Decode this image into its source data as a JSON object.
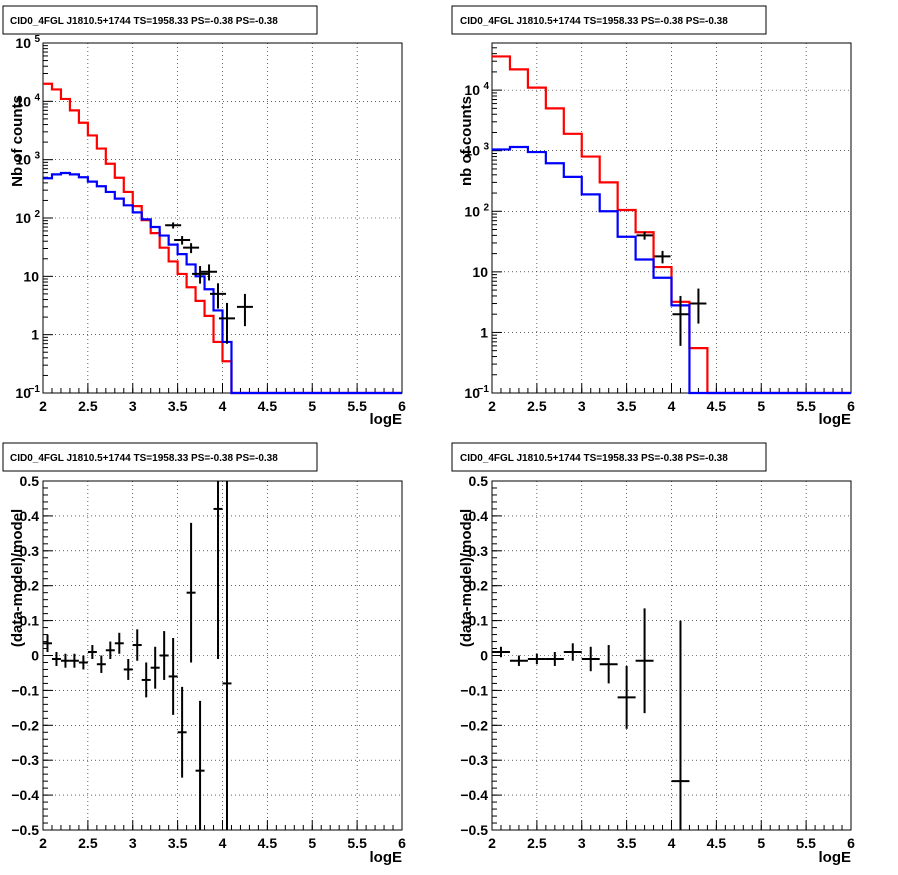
{
  "chart_data": [
    {
      "type": "line",
      "title": "CID0_4FGL J1810.5+1744 TS=1958.33 PS=-0.38 PS=-0.38",
      "xlabel": "logE",
      "ylabel": "Nb of counts",
      "xlim": [
        2,
        6
      ],
      "ylim": [
        0.1,
        100000
      ],
      "yscale": "log",
      "grid": true,
      "xticks": [
        "2",
        "2.5",
        "3",
        "3.5",
        "4",
        "4.5",
        "5",
        "5.5",
        "6"
      ],
      "yticks": [
        {
          "value": 0.1,
          "label": "10",
          "sup": "−1"
        },
        {
          "value": 1,
          "label": "1",
          "sup": ""
        },
        {
          "value": 10,
          "label": "10",
          "sup": ""
        },
        {
          "value": 100,
          "label": "10",
          "sup": "2"
        },
        {
          "value": 1000,
          "label": "10",
          "sup": "3"
        },
        {
          "value": 10000,
          "label": "10",
          "sup": "4"
        },
        {
          "value": 100000,
          "label": "10",
          "sup": "5"
        }
      ],
      "bin_edges": [
        2.0,
        2.1,
        2.2,
        2.3,
        2.4,
        2.5,
        2.6,
        2.7,
        2.8,
        2.9,
        3.0,
        3.1,
        3.2,
        3.3,
        3.4,
        3.5,
        3.6,
        3.7,
        3.8,
        3.9,
        4.0,
        4.1,
        4.2,
        4.3,
        4.4,
        4.5,
        4.6,
        4.7,
        4.8,
        4.9,
        5.0,
        5.1,
        5.2,
        5.3,
        5.4,
        5.5,
        5.6,
        5.7,
        5.8,
        5.9,
        6.0
      ],
      "series": [
        {
          "color": "#ff0000",
          "values": [
            20000,
            16000,
            11000,
            7000,
            4300,
            2600,
            1550,
            850,
            490,
            280,
            160,
            92,
            55,
            31,
            18,
            11,
            6.5,
            3.8,
            2.1,
            0.75,
            0.35,
            0.1,
            0.1,
            0.1,
            0.1,
            0.1,
            0.1,
            0.1,
            0.1,
            0.1,
            0.1,
            0.1,
            0.1,
            0.1,
            0.1,
            0.1,
            0.1,
            0.1,
            0.1,
            0.1
          ]
        },
        {
          "color": "#0000ff",
          "values": [
            480,
            560,
            590,
            560,
            500,
            420,
            350,
            280,
            215,
            165,
            125,
            95,
            70,
            50,
            35,
            24,
            16,
            10,
            6,
            2.6,
            0.75,
            0.1,
            0.1,
            0.1,
            0.1,
            0.1,
            0.1,
            0.1,
            0.1,
            0.1,
            0.1,
            0.1,
            0.1,
            0.1,
            0.1,
            0.1,
            0.1,
            0.1,
            0.1,
            0.1
          ]
        }
      ],
      "data_points": [
        {
          "x": 3.45,
          "y": 75,
          "yerr_lo": 9,
          "yerr_hi": 9
        },
        {
          "x": 3.55,
          "y": 42,
          "yerr_lo": 7,
          "yerr_hi": 7
        },
        {
          "x": 3.65,
          "y": 31,
          "yerr_lo": 6,
          "yerr_hi": 6
        },
        {
          "x": 3.75,
          "y": 11,
          "yerr_lo": 3.5,
          "yerr_hi": 4
        },
        {
          "x": 3.85,
          "y": 12,
          "yerr_lo": 3.5,
          "yerr_hi": 4
        },
        {
          "x": 3.95,
          "y": 5,
          "yerr_lo": 2.2,
          "yerr_hi": 2.6
        },
        {
          "x": 4.05,
          "y": 1.9,
          "yerr_lo": 1.2,
          "yerr_hi": 1.6
        },
        {
          "x": 4.25,
          "y": 3,
          "yerr_lo": 1.6,
          "yerr_hi": 2
        }
      ]
    },
    {
      "type": "line",
      "title": "CID0_4FGL J1810.5+1744 TS=1958.33 PS=-0.38 PS=-0.38",
      "xlabel": "logE",
      "ylabel": "nb of counts",
      "xlim": [
        2,
        6
      ],
      "ylim": [
        0.1,
        60000
      ],
      "yscale": "log",
      "grid": true,
      "xticks": [
        "2",
        "2.5",
        "3",
        "3.5",
        "4",
        "4.5",
        "5",
        "5.5",
        "6"
      ],
      "yticks": [
        {
          "value": 0.1,
          "label": "10",
          "sup": "−1"
        },
        {
          "value": 1,
          "label": "1",
          "sup": ""
        },
        {
          "value": 10,
          "label": "10",
          "sup": ""
        },
        {
          "value": 100,
          "label": "10",
          "sup": "2"
        },
        {
          "value": 1000,
          "label": "10",
          "sup": "3"
        },
        {
          "value": 10000,
          "label": "10",
          "sup": "4"
        }
      ],
      "bin_edges": [
        2.0,
        2.2,
        2.4,
        2.6,
        2.8,
        3.0,
        3.2,
        3.4,
        3.6,
        3.8,
        4.0,
        4.2,
        4.4,
        4.6,
        4.8,
        5.0,
        5.2,
        5.4,
        5.6,
        5.8,
        6.0
      ],
      "series": [
        {
          "color": "#ff0000",
          "values": [
            36000,
            22000,
            11000,
            5000,
            1900,
            800,
            300,
            105,
            45,
            12,
            3.2,
            0.55,
            0.1,
            0.1,
            0.1,
            0.1,
            0.1,
            0.1,
            0.1,
            0.1
          ]
        },
        {
          "color": "#0000ff",
          "values": [
            1050,
            1150,
            950,
            620,
            370,
            190,
            100,
            38,
            16,
            8,
            2.8,
            0.1,
            0.1,
            0.1,
            0.1,
            0.1,
            0.1,
            0.1,
            0.1,
            0.1
          ]
        }
      ],
      "data_points": [
        {
          "x": 3.7,
          "y": 40,
          "yerr_lo": 6,
          "yerr_hi": 6
        },
        {
          "x": 3.9,
          "y": 18,
          "yerr_lo": 4.2,
          "yerr_hi": 4.2
        },
        {
          "x": 4.1,
          "y": 2,
          "yerr_lo": 1.4,
          "yerr_hi": 2
        },
        {
          "x": 4.3,
          "y": 3,
          "yerr_lo": 1.6,
          "yerr_hi": 2.3
        }
      ]
    },
    {
      "type": "scatter",
      "title": "CID0_4FGL J1810.5+1744 TS=1958.33 PS=-0.38 PS=-0.38",
      "xlabel": "logE",
      "ylabel": "(data-model)/model",
      "xlim": [
        2,
        6
      ],
      "ylim": [
        -0.5,
        0.5
      ],
      "yscale": "linear",
      "grid": true,
      "xticks": [
        "2",
        "2.5",
        "3",
        "3.5",
        "4",
        "4.5",
        "5",
        "5.5",
        "6"
      ],
      "yticks": [
        {
          "value": -0.5,
          "label": "−0.5",
          "sup": ""
        },
        {
          "value": -0.4,
          "label": "−0.4",
          "sup": ""
        },
        {
          "value": -0.3,
          "label": "−0.3",
          "sup": ""
        },
        {
          "value": -0.2,
          "label": "−0.2",
          "sup": ""
        },
        {
          "value": -0.1,
          "label": "−0.1",
          "sup": ""
        },
        {
          "value": 0,
          "label": "0",
          "sup": ""
        },
        {
          "value": 0.1,
          "label": "0.1",
          "sup": ""
        },
        {
          "value": 0.2,
          "label": "0.2",
          "sup": ""
        },
        {
          "value": 0.3,
          "label": "0.3",
          "sup": ""
        },
        {
          "value": 0.4,
          "label": "0.4",
          "sup": ""
        },
        {
          "value": 0.5,
          "label": "0.5",
          "sup": ""
        }
      ],
      "xhalf": 0.05,
      "points": [
        {
          "x": 2.05,
          "y": 0.035,
          "err": 0.025
        },
        {
          "x": 2.15,
          "y": -0.01,
          "err": 0.02
        },
        {
          "x": 2.25,
          "y": -0.015,
          "err": 0.02
        },
        {
          "x": 2.35,
          "y": -0.015,
          "err": 0.02
        },
        {
          "x": 2.45,
          "y": -0.02,
          "err": 0.02
        },
        {
          "x": 2.55,
          "y": 0.01,
          "err": 0.02
        },
        {
          "x": 2.65,
          "y": -0.025,
          "err": 0.025
        },
        {
          "x": 2.75,
          "y": 0.015,
          "err": 0.025
        },
        {
          "x": 2.85,
          "y": 0.035,
          "err": 0.03
        },
        {
          "x": 2.95,
          "y": -0.04,
          "err": 0.03
        },
        {
          "x": 3.05,
          "y": 0.03,
          "err": 0.045
        },
        {
          "x": 3.15,
          "y": -0.07,
          "err": 0.05
        },
        {
          "x": 3.25,
          "y": -0.035,
          "err": 0.06
        },
        {
          "x": 3.35,
          "y": 0.0,
          "err": 0.07
        },
        {
          "x": 3.45,
          "y": -0.06,
          "err": 0.11
        },
        {
          "x": 3.55,
          "y": -0.22,
          "err": 0.13
        },
        {
          "x": 3.65,
          "y": 0.18,
          "err": 0.2
        },
        {
          "x": 3.75,
          "y": -0.33,
          "err": 0.2
        },
        {
          "x": 3.95,
          "y": 0.42,
          "err": 0.43
        },
        {
          "x": 4.05,
          "y": -0.08,
          "err": 0.6
        }
      ]
    },
    {
      "type": "scatter",
      "title": "CID0_4FGL J1810.5+1744 TS=1958.33 PS=-0.38 PS=-0.38",
      "xlabel": "logE",
      "ylabel": "(data-model)/model",
      "xlim": [
        2,
        6
      ],
      "ylim": [
        -0.5,
        0.5
      ],
      "yscale": "linear",
      "grid": true,
      "xticks": [
        "2",
        "2.5",
        "3",
        "3.5",
        "4",
        "4.5",
        "5",
        "5.5",
        "6"
      ],
      "yticks": [
        {
          "value": -0.5,
          "label": "−0.5",
          "sup": ""
        },
        {
          "value": -0.4,
          "label": "−0.4",
          "sup": ""
        },
        {
          "value": -0.3,
          "label": "−0.3",
          "sup": ""
        },
        {
          "value": -0.2,
          "label": "−0.2",
          "sup": ""
        },
        {
          "value": -0.1,
          "label": "−0.1",
          "sup": ""
        },
        {
          "value": 0,
          "label": "0",
          "sup": ""
        },
        {
          "value": 0.1,
          "label": "0.1",
          "sup": ""
        },
        {
          "value": 0.2,
          "label": "0.2",
          "sup": ""
        },
        {
          "value": 0.3,
          "label": "0.3",
          "sup": ""
        },
        {
          "value": 0.4,
          "label": "0.4",
          "sup": ""
        },
        {
          "value": 0.5,
          "label": "0.5",
          "sup": ""
        }
      ],
      "xhalf": 0.1,
      "points": [
        {
          "x": 2.1,
          "y": 0.01,
          "err": 0.015
        },
        {
          "x": 2.3,
          "y": -0.015,
          "err": 0.015
        },
        {
          "x": 2.5,
          "y": -0.01,
          "err": 0.015
        },
        {
          "x": 2.7,
          "y": -0.01,
          "err": 0.02
        },
        {
          "x": 2.9,
          "y": 0.01,
          "err": 0.025
        },
        {
          "x": 3.1,
          "y": -0.01,
          "err": 0.035
        },
        {
          "x": 3.3,
          "y": -0.025,
          "err": 0.055
        },
        {
          "x": 3.5,
          "y": -0.12,
          "err": 0.09
        },
        {
          "x": 3.7,
          "y": -0.015,
          "err": 0.15
        },
        {
          "x": 4.1,
          "y": -0.36,
          "err": 0.46
        }
      ]
    }
  ]
}
